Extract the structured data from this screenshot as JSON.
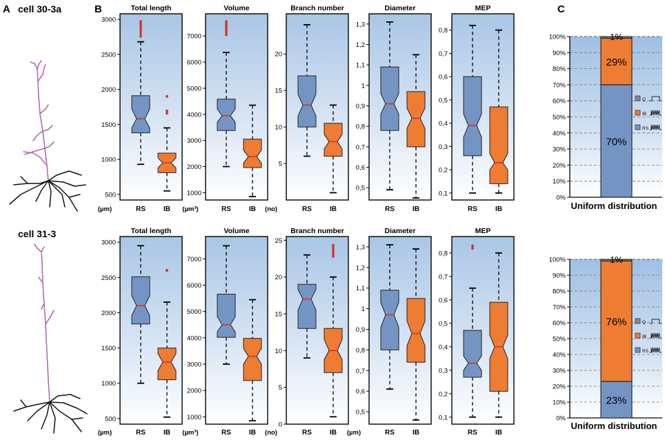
{
  "panel_labels": {
    "a": "A",
    "b": "B",
    "c": "C"
  },
  "cells": [
    {
      "name": "cell 30-3a"
    },
    {
      "name": "cell 31-3"
    }
  ],
  "colors": {
    "rs": "#7495c4",
    "ib": "#ee7c32",
    "median": "#d9302a",
    "outlier": "#d9302a",
    "bg_top": "#a9c6e6",
    "bg_bottom": "#ffffff",
    "dendrite_apical": "#b469b0",
    "dendrite_basal": "#111111"
  },
  "chart_data": [
    {
      "type": "box",
      "row": 0,
      "groups": [
        "RS",
        "IB"
      ],
      "metrics": [
        {
          "title": "Total length",
          "unit": "(µm)",
          "ylim": [
            420,
            3080
          ],
          "ticks": [
            {
              "v": 500,
              "l": "500"
            },
            {
              "v": 1000,
              "l": "1000"
            },
            {
              "v": 1500,
              "l": "1500"
            },
            {
              "v": 2000,
              "l": "2000"
            },
            {
              "v": 2500,
              "l": "2500"
            },
            {
              "v": 3000,
              "l": "3000"
            }
          ],
          "rs": {
            "min": 930,
            "q1": 1380,
            "med": 1580,
            "q3": 1910,
            "max": 2680,
            "nlo": 1450,
            "nhi": 1720,
            "out": [
              2760,
              2800,
              2840,
              2880,
              2910,
              2940,
              2970
            ]
          },
          "ib": {
            "min": 550,
            "q1": 810,
            "med": 950,
            "q3": 1090,
            "max": 1450,
            "nlo": 880,
            "nhi": 1020,
            "out": [
              1660,
              1690,
              1900
            ]
          }
        },
        {
          "title": "Volume",
          "unit": "(µm³)",
          "ylim": [
            720,
            7850
          ],
          "ticks": [
            {
              "v": 1000,
              "l": "1000"
            },
            {
              "v": 2000,
              "l": "2000"
            },
            {
              "v": 3000,
              "l": "3000"
            },
            {
              "v": 4000,
              "l": "4000"
            },
            {
              "v": 5000,
              "l": "5000"
            },
            {
              "v": 6000,
              "l": "6000"
            },
            {
              "v": 7000,
              "l": "7000"
            }
          ],
          "rs": {
            "min": 2000,
            "q1": 3380,
            "med": 3950,
            "q3": 4580,
            "max": 6370,
            "nlo": 3700,
            "nhi": 4200,
            "out": [
              7050,
              7150,
              7250,
              7300,
              7370,
              7430,
              7500,
              7550
            ]
          },
          "ib": {
            "min": 850,
            "q1": 1960,
            "med": 2380,
            "q3": 3050,
            "max": 4350,
            "nlo": 2130,
            "nhi": 2630,
            "out": []
          }
        },
        {
          "title": "Branch number",
          "unit": "(no)",
          "ylim": [
            0,
            25.5
          ],
          "ticks": [
            {
              "v": 5,
              "l": "5"
            },
            {
              "v": 10,
              "l": "10"
            },
            {
              "v": 15,
              "l": "15"
            },
            {
              "v": 20,
              "l": "20"
            }
          ],
          "rs": {
            "min": 6,
            "q1": 10,
            "med": 13,
            "q3": 17,
            "max": 24,
            "nlo": 11.5,
            "nhi": 14.5,
            "out": []
          },
          "ib": {
            "min": 1,
            "q1": 6,
            "med": 8,
            "q3": 10.5,
            "max": 13,
            "nlo": 7,
            "nhi": 9,
            "out": []
          }
        },
        {
          "title": "Diameter",
          "unit": "",
          "ylim": [
            0.44,
            1.35
          ],
          "ticks": [
            {
              "v": 0.5,
              "l": "0,5"
            },
            {
              "v": 0.6,
              "l": "0,6"
            },
            {
              "v": 0.7,
              "l": "0,7"
            },
            {
              "v": 0.8,
              "l": "0,8"
            },
            {
              "v": 0.9,
              "l": "0,9"
            },
            {
              "v": 1.0,
              "l": "1"
            },
            {
              "v": 1.1,
              "l": "1,1"
            },
            {
              "v": 1.2,
              "l": "1,2"
            },
            {
              "v": 1.3,
              "l": "1,3"
            }
          ],
          "rs": {
            "min": 0.49,
            "q1": 0.78,
            "med": 0.91,
            "q3": 1.09,
            "max": 1.31,
            "nlo": 0.86,
            "nhi": 0.96,
            "out": []
          },
          "ib": {
            "min": 0.45,
            "q1": 0.7,
            "med": 0.84,
            "q3": 0.97,
            "max": 1.15,
            "nlo": 0.79,
            "nhi": 0.89,
            "out": []
          }
        },
        {
          "title": "MEP",
          "unit": "",
          "ylim": [
            0.07,
            0.87
          ],
          "ticks": [
            {
              "v": 0.1,
              "l": "0,1"
            },
            {
              "v": 0.2,
              "l": "0,2"
            },
            {
              "v": 0.3,
              "l": "0,3"
            },
            {
              "v": 0.4,
              "l": "0,4"
            },
            {
              "v": 0.5,
              "l": "0,5"
            },
            {
              "v": 0.6,
              "l": "0,6"
            },
            {
              "v": 0.7,
              "l": "0,7"
            },
            {
              "v": 0.8,
              "l": "0,8"
            }
          ],
          "rs": {
            "min": 0.1,
            "q1": 0.26,
            "med": 0.39,
            "q3": 0.6,
            "max": 0.82,
            "nlo": 0.34,
            "nhi": 0.44,
            "out": []
          },
          "ib": {
            "min": 0.1,
            "q1": 0.14,
            "med": 0.23,
            "q3": 0.47,
            "max": 0.8,
            "nlo": 0.2,
            "nhi": 0.27,
            "out": []
          }
        }
      ]
    },
    {
      "type": "box",
      "row": 1,
      "groups": [
        "RS",
        "IB"
      ],
      "metrics": [
        {
          "title": "Total length",
          "unit": "(µm)",
          "ylim": [
            420,
            3080
          ],
          "ticks": [
            {
              "v": 500,
              "l": "500"
            },
            {
              "v": 1000,
              "l": "1000"
            },
            {
              "v": 1500,
              "l": "1500"
            },
            {
              "v": 2000,
              "l": "2000"
            },
            {
              "v": 2500,
              "l": "2500"
            },
            {
              "v": 3000,
              "l": "3000"
            }
          ],
          "rs": {
            "min": 1000,
            "q1": 1840,
            "med": 2100,
            "q3": 2510,
            "max": 2950,
            "nlo": 1960,
            "nhi": 2240,
            "out": []
          },
          "ib": {
            "min": 520,
            "q1": 1050,
            "med": 1300,
            "q3": 1500,
            "max": 2150,
            "nlo": 1180,
            "nhi": 1420,
            "out": [
              2600
            ]
          }
        },
        {
          "title": "Volume",
          "unit": "(µm³)",
          "ylim": [
            720,
            7850
          ],
          "ticks": [
            {
              "v": 1000,
              "l": "1000"
            },
            {
              "v": 2000,
              "l": "2000"
            },
            {
              "v": 3000,
              "l": "3000"
            },
            {
              "v": 4000,
              "l": "4000"
            },
            {
              "v": 5000,
              "l": "5000"
            },
            {
              "v": 6000,
              "l": "6000"
            },
            {
              "v": 7000,
              "l": "7000"
            }
          ],
          "rs": {
            "min": 3000,
            "q1": 4020,
            "med": 4500,
            "q3": 5660,
            "max": 7500,
            "nlo": 4230,
            "nhi": 4800,
            "out": []
          },
          "ib": {
            "min": 850,
            "q1": 2380,
            "med": 3300,
            "q3": 3980,
            "max": 5450,
            "nlo": 3000,
            "nhi": 3600,
            "out": []
          }
        },
        {
          "title": "Branch number",
          "unit": "(no)",
          "ylim": [
            0,
            25.5
          ],
          "ticks": [
            {
              "v": 0,
              "l": "0"
            },
            {
              "v": 5,
              "l": "5"
            },
            {
              "v": 10,
              "l": "10"
            },
            {
              "v": 15,
              "l": "15"
            },
            {
              "v": 20,
              "l": "20"
            },
            {
              "v": 25,
              "l": "25"
            }
          ],
          "rs": {
            "min": 9,
            "q1": 13,
            "med": 17,
            "q3": 19,
            "max": 23,
            "nlo": 15.5,
            "nhi": 18.3,
            "out": []
          },
          "ib": {
            "min": 1,
            "q1": 7,
            "med": 10,
            "q3": 13,
            "max": 20,
            "nlo": 8.8,
            "nhi": 11.5,
            "out": [
              22.8,
              23.1,
              23.4,
              23.7,
              24.0,
              24.3
            ]
          }
        },
        {
          "title": "Diameter",
          "unit": "(µm)",
          "ylim": [
            0.44,
            1.35
          ],
          "ticks": [
            {
              "v": 0.5,
              "l": "0,5"
            },
            {
              "v": 0.6,
              "l": "0,6"
            },
            {
              "v": 0.7,
              "l": "0,7"
            },
            {
              "v": 0.8,
              "l": "0,8"
            },
            {
              "v": 0.9,
              "l": "0,9"
            },
            {
              "v": 1.0,
              "l": "1"
            },
            {
              "v": 1.1,
              "l": "1,1"
            },
            {
              "v": 1.2,
              "l": "1,2"
            },
            {
              "v": 1.3,
              "l": "1,3"
            }
          ],
          "rs": {
            "min": 0.61,
            "q1": 0.8,
            "med": 0.97,
            "q3": 1.09,
            "max": 1.31,
            "nlo": 0.91,
            "nhi": 1.03,
            "out": []
          },
          "ib": {
            "min": 0.46,
            "q1": 0.74,
            "med": 0.88,
            "q3": 1.05,
            "max": 1.29,
            "nlo": 0.82,
            "nhi": 0.94,
            "out": []
          }
        },
        {
          "title": "MEP",
          "unit": "",
          "ylim": [
            0.07,
            0.87
          ],
          "ticks": [
            {
              "v": 0.1,
              "l": "0,1"
            },
            {
              "v": 0.2,
              "l": "0,2"
            },
            {
              "v": 0.3,
              "l": "0,3"
            },
            {
              "v": 0.4,
              "l": "0,4"
            },
            {
              "v": 0.5,
              "l": "0,5"
            },
            {
              "v": 0.6,
              "l": "0,6"
            },
            {
              "v": 0.7,
              "l": "0,7"
            },
            {
              "v": 0.8,
              "l": "0,8"
            }
          ],
          "rs": {
            "min": 0.1,
            "q1": 0.27,
            "med": 0.33,
            "q3": 0.47,
            "max": 0.65,
            "nlo": 0.3,
            "nhi": 0.36,
            "out": [
              0.82,
              0.83
            ]
          },
          "ib": {
            "min": 0.1,
            "q1": 0.21,
            "med": 0.4,
            "q3": 0.59,
            "max": 0.8,
            "nlo": 0.35,
            "nhi": 0.45,
            "out": []
          }
        }
      ]
    },
    {
      "type": "stacked_bar",
      "row": 0,
      "title": "Uniform distribution",
      "yticks": [
        "0%",
        "10%",
        "20%",
        "30%",
        "40%",
        "50%",
        "60%",
        "70%",
        "80%",
        "90%",
        "100%"
      ],
      "segments": [
        {
          "name": "RS",
          "value": 70,
          "label": "70%"
        },
        {
          "name": "IB",
          "value": 29,
          "label": "29%"
        },
        {
          "name": "Q",
          "value": 1,
          "label": "1%"
        }
      ],
      "legend": [
        "Q",
        "IB",
        "RS"
      ]
    },
    {
      "type": "stacked_bar",
      "row": 1,
      "title": "Uniform distribution",
      "yticks": [
        "0%",
        "10%",
        "20%",
        "30%",
        "40%",
        "50%",
        "60%",
        "70%",
        "80%",
        "90%",
        "100%"
      ],
      "segments": [
        {
          "name": "RS",
          "value": 23,
          "label": "23%"
        },
        {
          "name": "IB",
          "value": 76,
          "label": "76%"
        },
        {
          "name": "Q",
          "value": 1,
          "label": "1%"
        }
      ],
      "legend": [
        "Q",
        "IB",
        "RS"
      ]
    }
  ]
}
